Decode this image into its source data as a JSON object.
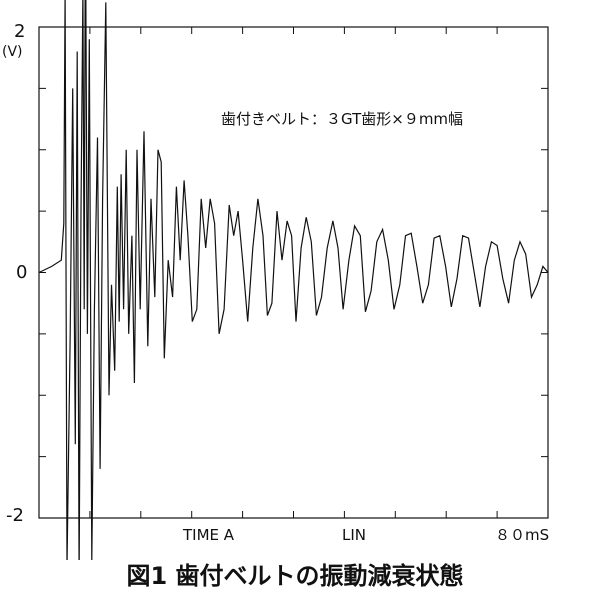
{
  "chart_data": {
    "type": "line",
    "title": "図1 歯付ベルトの振動減衰状態",
    "annotation": "歯付きベルト：３GT歯形×９mm幅",
    "ylabel": "(V)",
    "ylim": [
      -2,
      2
    ],
    "xlim": [
      0,
      80
    ],
    "y_tick_labels": [
      "2",
      "0",
      "-2"
    ],
    "x_tick_labels": [
      "TIME A",
      "LIN",
      "８０mS"
    ],
    "grid": false,
    "series": [
      {
        "x": [
          0,
          2.0,
          3.5,
          3.9,
          4.1,
          4.4,
          4.9,
          5.3,
          5.7,
          6.0,
          6.3,
          6.6,
          6.9,
          7.1,
          7.3,
          7.6,
          7.9,
          8.3,
          8.7,
          9.2,
          9.6,
          10.0,
          10.5,
          11.0,
          11.4,
          11.9,
          12.3,
          12.6,
          12.9,
          13.3,
          13.7,
          14.1,
          14.6,
          15.0,
          15.4,
          15.9,
          16.5,
          17.1,
          17.6,
          18.2,
          18.7,
          19.2,
          19.7,
          20.3,
          21.0,
          21.6,
          22.2,
          22.8,
          23.4,
          24.1,
          24.8,
          25.5,
          26.2,
          26.9,
          27.6,
          28.3,
          29.1,
          29.9,
          30.6,
          31.3,
          32.0,
          32.8,
          33.6,
          34.4,
          35.2,
          35.9,
          36.6,
          37.4,
          38.2,
          39.0,
          39.7,
          40.4,
          41.2,
          42.0,
          42.8,
          43.6,
          44.4,
          45.3,
          46.2,
          47.0,
          47.8,
          48.7,
          49.6,
          50.5,
          51.3,
          52.2,
          53.1,
          54.0,
          54.9,
          55.8,
          56.7,
          57.6,
          58.5,
          59.4,
          60.3,
          61.2,
          62.1,
          63.0,
          63.9,
          64.8,
          65.7,
          66.6,
          67.5,
          68.4,
          69.3,
          70.2,
          71.1,
          72.0,
          72.9,
          73.8,
          74.7,
          75.6,
          76.5,
          77.4,
          78.3,
          79.2,
          80.0
        ],
        "y": [
          0,
          0.05,
          0.1,
          0.4,
          2.3,
          -2.4,
          -0.5,
          1.5,
          -1.4,
          1.8,
          -2.5,
          0.5,
          2.3,
          -0.3,
          3.05,
          -0.5,
          1.9,
          -2.35,
          -0.3,
          1.1,
          -1.6,
          0.6,
          2.2,
          -1.0,
          -0.1,
          -0.8,
          0.7,
          -0.4,
          0.8,
          -0.3,
          1.0,
          -0.5,
          0.3,
          -0.9,
          1.0,
          -0.3,
          1.15,
          -0.6,
          0.6,
          -0.2,
          1.0,
          0.9,
          -0.7,
          0.1,
          -0.2,
          0.7,
          0.1,
          0.75,
          0.3,
          -0.4,
          -0.3,
          0.6,
          0.2,
          0.6,
          0.4,
          -0.5,
          -0.3,
          0.55,
          0.3,
          0.5,
          0.1,
          -0.4,
          0.2,
          0.6,
          0.3,
          -0.35,
          -0.25,
          0.5,
          0.1,
          0.42,
          0.3,
          -0.4,
          0.2,
          0.45,
          0.25,
          -0.35,
          -0.2,
          0.2,
          0.42,
          0.2,
          -0.3,
          0.1,
          0.38,
          0.3,
          -0.32,
          -0.15,
          0.25,
          0.35,
          0.1,
          -0.3,
          -0.1,
          0.3,
          0.32,
          0.05,
          -0.25,
          -0.1,
          0.28,
          0.3,
          0.05,
          -0.28,
          -0.05,
          0.3,
          0.28,
          0.0,
          -0.28,
          0.05,
          0.25,
          0.22,
          -0.05,
          -0.25,
          0.1,
          0.25,
          0.15,
          -0.2,
          -0.1,
          0.05,
          0.0
        ]
      }
    ]
  }
}
